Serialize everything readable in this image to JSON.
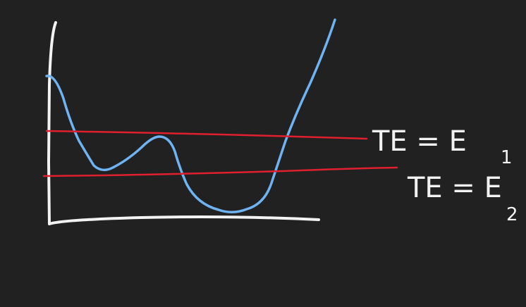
{
  "colors": {
    "background": "#212121",
    "axes": "#f2f2f2",
    "potential_curve": "#6fb3f2",
    "energy_lines": "#e0202f",
    "text": "#f2f2f2"
  },
  "labels": {
    "e1": {
      "main": "TE = E",
      "sub": "1"
    },
    "e2": {
      "main": "TE = E",
      "sub": "2"
    }
  }
}
